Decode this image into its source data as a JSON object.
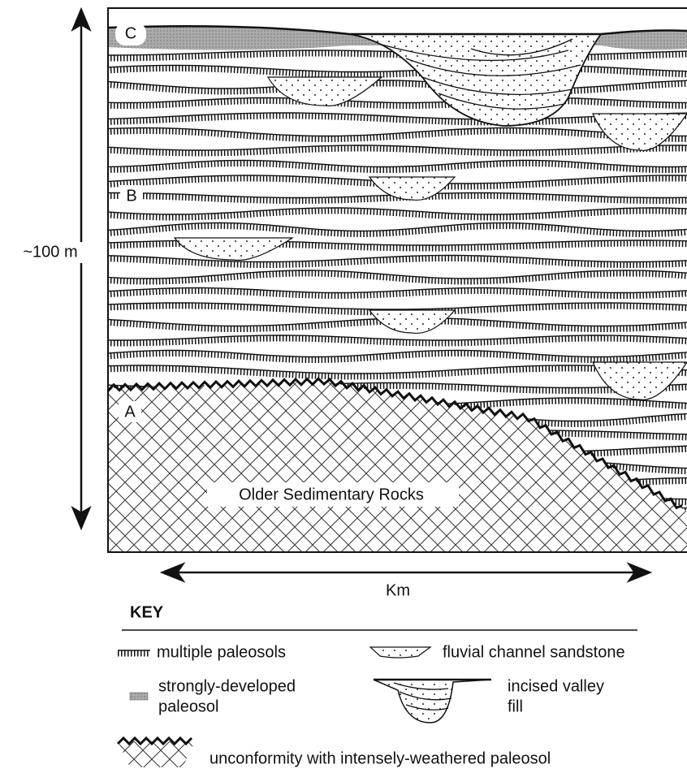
{
  "labels": {
    "c": "C",
    "b": "B",
    "a": "A",
    "thickness": "~100 m",
    "distance": "Km",
    "basement": "Older Sedimentary Rocks"
  },
  "key": {
    "title": "KEY",
    "paleosols": "multiple paleosols",
    "channel": "fluvial channel sandstone",
    "strong": [
      "strongly-developed",
      "paleosol"
    ],
    "valley": [
      "incised valley",
      "fill"
    ],
    "unconformity": "unconformity with intensely-weathered paleosol"
  }
}
